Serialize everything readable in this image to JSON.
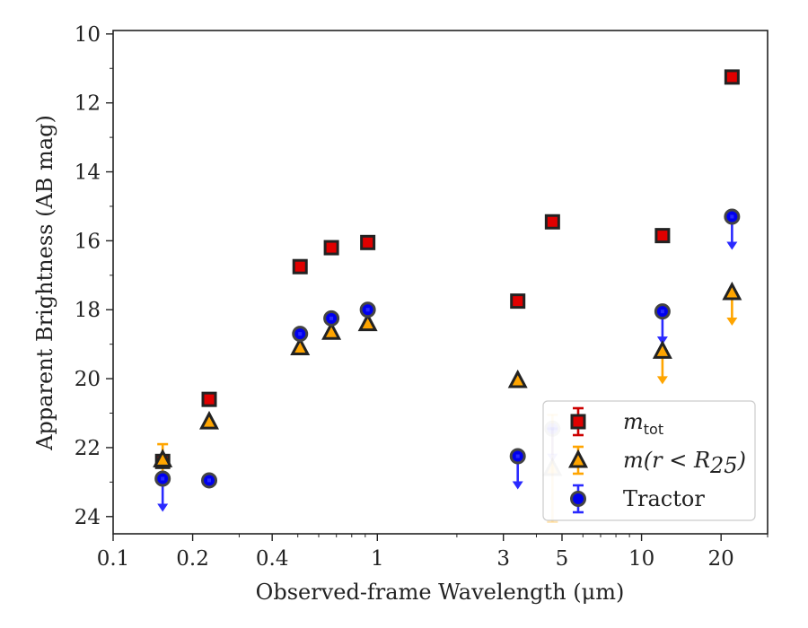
{
  "chart_data": {
    "type": "scatter",
    "xlabel": "Observed-frame Wavelength (μm)",
    "ylabel": "Apparent Brightness (AB mag)",
    "xscale": "log",
    "yaxis_inverted": true,
    "xlim": [
      0.1,
      30
    ],
    "ylim": [
      24.5,
      9.9
    ],
    "x_ticks": [
      {
        "value": 0.1,
        "label": "0.1"
      },
      {
        "value": 0.2,
        "label": "0.2"
      },
      {
        "value": 0.4,
        "label": "0.4"
      },
      {
        "value": 1,
        "label": "1"
      },
      {
        "value": 3,
        "label": "3"
      },
      {
        "value": 5,
        "label": "5"
      },
      {
        "value": 10,
        "label": "10"
      },
      {
        "value": 20,
        "label": "20"
      }
    ],
    "y_ticks": [
      10,
      12,
      14,
      16,
      18,
      20,
      22,
      24
    ],
    "legend_position": "lower-right",
    "series": [
      {
        "name": "m_tot",
        "legend_main": "m",
        "legend_sub": "tot",
        "marker": "square",
        "color": "#e00000",
        "edgecolor": "#222222",
        "errcolor": "#cc0000",
        "points": [
          {
            "x": 0.154,
            "y": 22.4,
            "err": 0.15
          },
          {
            "x": 0.231,
            "y": 20.6
          },
          {
            "x": 0.51,
            "y": 16.75
          },
          {
            "x": 0.67,
            "y": 16.2
          },
          {
            "x": 0.92,
            "y": 16.05
          },
          {
            "x": 3.4,
            "y": 17.75
          },
          {
            "x": 4.6,
            "y": 15.45
          },
          {
            "x": 12.0,
            "y": 15.85
          },
          {
            "x": 22.0,
            "y": 11.25
          }
        ]
      },
      {
        "name": "m(r < R_25)",
        "legend_main": "m(r < R",
        "legend_sub": "25",
        "legend_tail": ")",
        "marker": "triangle",
        "color": "#ffa500",
        "edgecolor": "#222222",
        "errcolor": "#ffa500",
        "points": [
          {
            "x": 0.154,
            "y": 22.35,
            "err": 0.45
          },
          {
            "x": 0.231,
            "y": 21.25
          },
          {
            "x": 0.51,
            "y": 19.1
          },
          {
            "x": 0.67,
            "y": 18.65
          },
          {
            "x": 0.92,
            "y": 18.4
          },
          {
            "x": 3.4,
            "y": 20.05
          },
          {
            "x": 4.6,
            "y": 22.6,
            "err": 1.55,
            "faded": true
          },
          {
            "x": 12.0,
            "y": 19.2,
            "upper_limit": true
          },
          {
            "x": 22.0,
            "y": 17.5,
            "upper_limit": true
          }
        ]
      },
      {
        "name": "Tractor",
        "legend_main": "Tractor",
        "marker": "circle",
        "color": "#0000ee",
        "edgecolor": "#444444",
        "errcolor": "#2a2aff",
        "points": [
          {
            "x": 0.154,
            "y": 22.9,
            "upper_limit": true
          },
          {
            "x": 0.231,
            "y": 22.95
          },
          {
            "x": 0.51,
            "y": 18.7
          },
          {
            "x": 0.67,
            "y": 18.25
          },
          {
            "x": 0.92,
            "y": 18.0
          },
          {
            "x": 3.4,
            "y": 22.25,
            "upper_limit": true
          },
          {
            "x": 4.6,
            "y": 21.45,
            "upper_limit": true,
            "faded": true
          },
          {
            "x": 12.0,
            "y": 18.05,
            "upper_limit": true
          },
          {
            "x": 22.0,
            "y": 15.3,
            "upper_limit": true
          }
        ]
      }
    ]
  }
}
